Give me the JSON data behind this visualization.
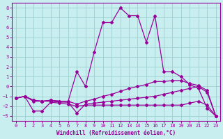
{
  "xlabel": "Windchill (Refroidissement éolien,°C)",
  "bg_color": "#c8eef0",
  "grid_color": "#9ecece",
  "line_color": "#990099",
  "xlim": [
    -0.5,
    23.5
  ],
  "ylim": [
    -3.5,
    8.5
  ],
  "xticks": [
    0,
    1,
    2,
    3,
    4,
    5,
    6,
    7,
    8,
    9,
    10,
    11,
    12,
    13,
    14,
    15,
    16,
    17,
    18,
    19,
    20,
    21,
    22,
    23
  ],
  "yticks": [
    -3,
    -2,
    -1,
    0,
    1,
    2,
    3,
    4,
    5,
    6,
    7,
    8
  ],
  "series_peaked_x": [
    0,
    1,
    2,
    3,
    4,
    5,
    6,
    7,
    8,
    9,
    10,
    11,
    12,
    13,
    14,
    15,
    16,
    17,
    18,
    19,
    20,
    21,
    22,
    23
  ],
  "series_peaked_y": [
    -1.2,
    -1.0,
    -1.4,
    -1.5,
    -1.4,
    -1.5,
    -1.5,
    1.5,
    0.0,
    3.5,
    6.5,
    6.5,
    8.0,
    7.2,
    7.2,
    4.5,
    7.2,
    1.5,
    1.5,
    1.0,
    0.2,
    -0.2,
    -2.2,
    -3.0
  ],
  "series_rising_x": [
    0,
    1,
    2,
    3,
    4,
    5,
    6,
    7,
    8,
    9,
    10,
    11,
    12,
    13,
    14,
    15,
    16,
    17,
    18,
    19,
    20,
    21,
    22,
    23
  ],
  "series_rising_y": [
    -1.2,
    -1.0,
    -1.4,
    -1.5,
    -1.4,
    -1.5,
    -1.5,
    -1.8,
    -1.5,
    -1.3,
    -1.0,
    -0.8,
    -0.5,
    -0.2,
    0.0,
    0.2,
    0.5,
    0.5,
    0.6,
    0.6,
    0.3,
    0.1,
    -0.4,
    -3.0
  ],
  "series_mid_x": [
    0,
    1,
    2,
    3,
    4,
    5,
    6,
    7,
    8,
    9,
    10,
    11,
    12,
    13,
    14,
    15,
    16,
    17,
    18,
    19,
    20,
    21,
    22,
    23
  ],
  "series_mid_y": [
    -1.2,
    -1.0,
    -1.5,
    -1.5,
    -1.5,
    -1.6,
    -1.6,
    -2.7,
    -1.8,
    -1.7,
    -1.6,
    -1.5,
    -1.4,
    -1.3,
    -1.2,
    -1.1,
    -1.0,
    -0.8,
    -0.6,
    -0.4,
    -0.2,
    0.0,
    -0.6,
    -3.0
  ],
  "series_flat_x": [
    0,
    1,
    2,
    3,
    4,
    5,
    6,
    7,
    8,
    9,
    10,
    11,
    12,
    13,
    14,
    15,
    16,
    17,
    18,
    19,
    20,
    21,
    22,
    23
  ],
  "series_flat_y": [
    -1.2,
    -1.0,
    -2.5,
    -2.5,
    -1.6,
    -1.7,
    -1.8,
    -2.0,
    -1.9,
    -1.9,
    -1.9,
    -1.9,
    -1.9,
    -1.9,
    -1.9,
    -1.9,
    -1.9,
    -1.9,
    -1.9,
    -1.9,
    -1.7,
    -1.5,
    -1.9,
    -3.0
  ]
}
